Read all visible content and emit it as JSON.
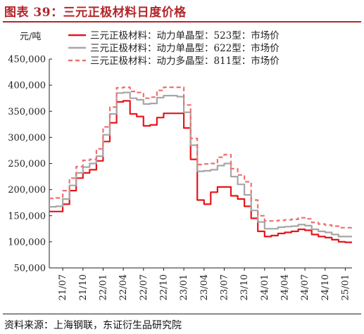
{
  "header": {
    "title": "图表 39：三元正极材料日度价格",
    "source": "资料来源：上海钢联，东证衍生品研究院"
  },
  "chart_data": {
    "type": "line",
    "ylabel": "元/吨",
    "ylim": [
      50000,
      450000
    ],
    "yticks": [
      50000,
      100000,
      150000,
      200000,
      250000,
      300000,
      350000,
      400000,
      450000
    ],
    "ytick_labels": [
      "50,000",
      "100,000",
      "150,000",
      "200,000",
      "250,000",
      "300,000",
      "350,000",
      "400,000",
      "450,000"
    ],
    "xlim": [
      "2021-05",
      "2025-02"
    ],
    "xticks": [
      "21/07",
      "21/10",
      "22/01",
      "22/04",
      "22/07",
      "22/10",
      "23/01",
      "23/04",
      "23/07",
      "23/10",
      "24/01",
      "24/04",
      "24/07",
      "24/10",
      "25/01"
    ],
    "grid": false,
    "legend_position": "top-right",
    "series": [
      {
        "name": "三元正极材料：动力单晶型：523型：市场价",
        "color": "#e8141b",
        "style": "solid",
        "points": [
          [
            "2021-05",
            158000
          ],
          [
            "2021-06",
            158000
          ],
          [
            "2021-07",
            172000
          ],
          [
            "2021-08",
            198000
          ],
          [
            "2021-09",
            222000
          ],
          [
            "2021-10",
            232000
          ],
          [
            "2021-11",
            238000
          ],
          [
            "2021-12",
            255000
          ],
          [
            "2022-01",
            292000
          ],
          [
            "2022-02",
            328000
          ],
          [
            "2022-03",
            368000
          ],
          [
            "2022-04",
            370000
          ],
          [
            "2022-05",
            345000
          ],
          [
            "2022-06",
            340000
          ],
          [
            "2022-07",
            322000
          ],
          [
            "2022-08",
            324000
          ],
          [
            "2022-09",
            338000
          ],
          [
            "2022-10",
            346000
          ],
          [
            "2022-11",
            346000
          ],
          [
            "2022-12",
            346000
          ],
          [
            "2023-01",
            318000
          ],
          [
            "2023-02",
            258000
          ],
          [
            "2023-03",
            180000
          ],
          [
            "2023-04",
            172000
          ],
          [
            "2023-05",
            195000
          ],
          [
            "2023-06",
            205000
          ],
          [
            "2023-07",
            205000
          ],
          [
            "2023-08",
            188000
          ],
          [
            "2023-09",
            182000
          ],
          [
            "2023-10",
            168000
          ],
          [
            "2023-11",
            145000
          ],
          [
            "2023-12",
            120000
          ],
          [
            "2024-01",
            110000
          ],
          [
            "2024-02",
            112000
          ],
          [
            "2024-03",
            116000
          ],
          [
            "2024-04",
            118000
          ],
          [
            "2024-05",
            120000
          ],
          [
            "2024-06",
            124000
          ],
          [
            "2024-07",
            122000
          ],
          [
            "2024-08",
            114000
          ],
          [
            "2024-09",
            110000
          ],
          [
            "2024-10",
            108000
          ],
          [
            "2024-11",
            104000
          ],
          [
            "2024-12",
            100000
          ],
          [
            "2025-01",
            99000
          ],
          [
            "2025-02",
            99000
          ]
        ]
      },
      {
        "name": "三元正极材料：动力单晶型：622型：市场价",
        "color": "#a6a6a6",
        "style": "solid",
        "points": [
          [
            "2021-05",
            167000
          ],
          [
            "2021-06",
            168000
          ],
          [
            "2021-07",
            182000
          ],
          [
            "2021-08",
            208000
          ],
          [
            "2021-09",
            232000
          ],
          [
            "2021-10",
            243000
          ],
          [
            "2021-11",
            250000
          ],
          [
            "2021-12",
            264000
          ],
          [
            "2022-01",
            305000
          ],
          [
            "2022-02",
            345000
          ],
          [
            "2022-03",
            385000
          ],
          [
            "2022-04",
            386000
          ],
          [
            "2022-05",
            375000
          ],
          [
            "2022-06",
            372000
          ],
          [
            "2022-07",
            364000
          ],
          [
            "2022-08",
            365000
          ],
          [
            "2022-09",
            376000
          ],
          [
            "2022-10",
            380000
          ],
          [
            "2022-11",
            380000
          ],
          [
            "2022-12",
            378000
          ],
          [
            "2023-01",
            348000
          ],
          [
            "2023-02",
            285000
          ],
          [
            "2023-03",
            235000
          ],
          [
            "2023-04",
            236000
          ],
          [
            "2023-05",
            238000
          ],
          [
            "2023-06",
            246000
          ],
          [
            "2023-07",
            250000
          ],
          [
            "2023-08",
            225000
          ],
          [
            "2023-09",
            210000
          ],
          [
            "2023-10",
            190000
          ],
          [
            "2023-11",
            160000
          ],
          [
            "2023-12",
            138000
          ],
          [
            "2024-01",
            125000
          ],
          [
            "2024-02",
            125000
          ],
          [
            "2024-03",
            128000
          ],
          [
            "2024-04",
            129000
          ],
          [
            "2024-05",
            130000
          ],
          [
            "2024-06",
            133000
          ],
          [
            "2024-07",
            131000
          ],
          [
            "2024-08",
            124000
          ],
          [
            "2024-09",
            120000
          ],
          [
            "2024-10",
            118000
          ],
          [
            "2024-11",
            114000
          ],
          [
            "2024-12",
            110000
          ],
          [
            "2025-01",
            110000
          ],
          [
            "2025-02",
            110000
          ]
        ]
      },
      {
        "name": "三元正极材料：动力多晶型：811型：市场价",
        "color": "#f07070",
        "style": "dashed",
        "points": [
          [
            "2021-05",
            183000
          ],
          [
            "2021-06",
            184000
          ],
          [
            "2021-07",
            198000
          ],
          [
            "2021-08",
            222000
          ],
          [
            "2021-09",
            244000
          ],
          [
            "2021-10",
            256000
          ],
          [
            "2021-11",
            258000
          ],
          [
            "2021-12",
            278000
          ],
          [
            "2022-01",
            320000
          ],
          [
            "2022-02",
            358000
          ],
          [
            "2022-03",
            395000
          ],
          [
            "2022-04",
            396000
          ],
          [
            "2022-05",
            388000
          ],
          [
            "2022-06",
            386000
          ],
          [
            "2022-07",
            375000
          ],
          [
            "2022-08",
            377000
          ],
          [
            "2022-09",
            390000
          ],
          [
            "2022-10",
            396000
          ],
          [
            "2022-11",
            396000
          ],
          [
            "2022-12",
            396000
          ],
          [
            "2023-01",
            362000
          ],
          [
            "2023-02",
            298000
          ],
          [
            "2023-03",
            248000
          ],
          [
            "2023-04",
            249000
          ],
          [
            "2023-05",
            250000
          ],
          [
            "2023-06",
            262000
          ],
          [
            "2023-07",
            267000
          ],
          [
            "2023-08",
            240000
          ],
          [
            "2023-09",
            228000
          ],
          [
            "2023-10",
            215000
          ],
          [
            "2023-11",
            180000
          ],
          [
            "2023-12",
            150000
          ],
          [
            "2024-01",
            140000
          ],
          [
            "2024-02",
            140000
          ],
          [
            "2024-03",
            141000
          ],
          [
            "2024-04",
            142000
          ],
          [
            "2024-05",
            143000
          ],
          [
            "2024-06",
            146000
          ],
          [
            "2024-07",
            144000
          ],
          [
            "2024-08",
            137000
          ],
          [
            "2024-09",
            134000
          ],
          [
            "2024-10",
            132000
          ],
          [
            "2024-11",
            130000
          ],
          [
            "2024-12",
            127000
          ],
          [
            "2025-01",
            127000
          ],
          [
            "2025-02",
            127000
          ]
        ]
      }
    ]
  }
}
